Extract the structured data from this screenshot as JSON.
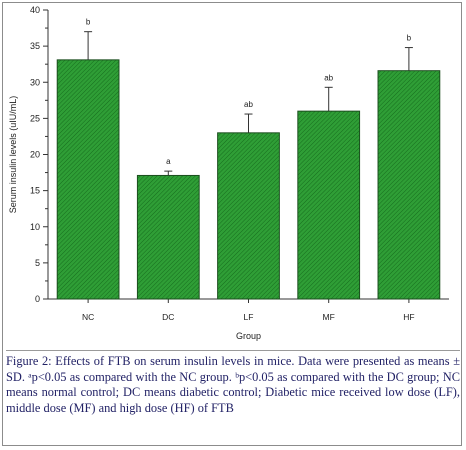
{
  "chart_data": {
    "type": "bar",
    "categories": [
      "NC",
      "DC",
      "LF",
      "MF",
      "HF"
    ],
    "values": [
      33.1,
      17.1,
      23.0,
      26.0,
      31.6
    ],
    "error": [
      3.9,
      0.6,
      2.6,
      3.3,
      3.2
    ],
    "letters": [
      "b",
      "a",
      "ab",
      "ab",
      "b"
    ],
    "xlabel": "Group",
    "ylabel": "Serum insulin levels (uIU/mL)",
    "ylim": [
      0,
      40
    ],
    "yticks": [
      "0",
      "5",
      "10",
      "15",
      "20",
      "25",
      "30",
      "35",
      "40"
    ],
    "grid": false,
    "colors": {
      "bar_fill": "#2f9e36",
      "bar_hatch": "#166d1d",
      "bar_edge": "#1b4e1e",
      "axis": "#333333",
      "text": "#222222"
    }
  },
  "caption": "Figure 2: Effects of FTB on serum insulin levels in mice. Data were presented as means ± SD. ᵃp<0.05 as compared with the NC group. ᵇp<0.05 as compared with the DC group; NC means normal control; DC means diabetic control; Diabetic mice received low dose (LF), middle dose (MF) and high dose (HF) of FTB"
}
